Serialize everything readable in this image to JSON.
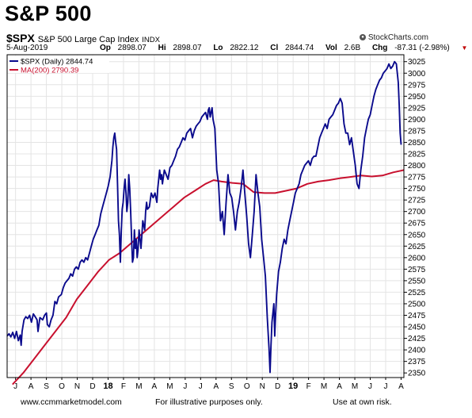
{
  "header": {
    "title": "S&P 500",
    "symbol": "$SPX",
    "description": "S&P 500 Large Cap Index",
    "exchange": "INDX",
    "brand": "StockCharts.com",
    "date": "5-Aug-2019",
    "quote": {
      "op_label": "Op",
      "op": "2898.07",
      "hi_label": "Hi",
      "hi": "2898.07",
      "lo_label": "Lo",
      "lo": "2822.12",
      "cl_label": "Cl",
      "cl": "2844.74",
      "vol_label": "Vol",
      "vol": "2.6B",
      "chg_label": "Chg",
      "chg": "-87.31 (-2.98%)"
    },
    "down_arrow": "▼"
  },
  "footer": {
    "left": "www.ccmmarketmodel.com",
    "center": "For illustrative purposes only.",
    "right": "Use at own risk."
  },
  "colors": {
    "price": "#0a0a8c",
    "ma": "#c8102e",
    "grid": "#e4e4e4",
    "axis": "#000000"
  },
  "chart_data": {
    "type": "line",
    "x_tick_labels": [
      "J",
      "A",
      "S",
      "O",
      "N",
      "D",
      "18",
      "F",
      "M",
      "A",
      "M",
      "J",
      "J",
      "A",
      "S",
      "O",
      "N",
      "D",
      "19",
      "F",
      "M",
      "A",
      "M",
      "J",
      "J",
      "A"
    ],
    "y_ticks": [
      2350,
      2375,
      2400,
      2425,
      2450,
      2475,
      2500,
      2525,
      2550,
      2575,
      2600,
      2625,
      2650,
      2675,
      2700,
      2725,
      2750,
      2775,
      2800,
      2825,
      2850,
      2875,
      2900,
      2925,
      2950,
      2975,
      3000,
      3025
    ],
    "ylim": [
      2340,
      3040
    ],
    "legend": [
      {
        "label": "$SPX (Daily) 2844.74",
        "color": "#0a0a8c"
      },
      {
        "label": "MA(200) 2790.39",
        "color": "#c8102e"
      }
    ],
    "series": [
      {
        "name": "$SPX (Daily)",
        "color": "#0a0a8c",
        "points": [
          [
            0,
            2430
          ],
          [
            0.2,
            2435
          ],
          [
            0.4,
            2428
          ],
          [
            0.6,
            2438
          ],
          [
            0.8,
            2425
          ],
          [
            1,
            2440
          ],
          [
            1.2,
            2420
          ],
          [
            1.4,
            2432
          ],
          [
            1.5,
            2410
          ],
          [
            1.6,
            2440
          ],
          [
            1.8,
            2465
          ],
          [
            2,
            2472
          ],
          [
            2.2,
            2468
          ],
          [
            2.4,
            2475
          ],
          [
            2.6,
            2460
          ],
          [
            2.8,
            2478
          ],
          [
            3,
            2472
          ],
          [
            3.2,
            2465
          ],
          [
            3.3,
            2440
          ],
          [
            3.5,
            2470
          ],
          [
            3.8,
            2465
          ],
          [
            4,
            2475
          ],
          [
            4.2,
            2480
          ],
          [
            4.3,
            2455
          ],
          [
            4.5,
            2450
          ],
          [
            4.7,
            2465
          ],
          [
            4.9,
            2475
          ],
          [
            5.1,
            2505
          ],
          [
            5.3,
            2500
          ],
          [
            5.5,
            2515
          ],
          [
            5.8,
            2520
          ],
          [
            6,
            2535
          ],
          [
            6.2,
            2545
          ],
          [
            6.4,
            2550
          ],
          [
            6.6,
            2555
          ],
          [
            6.8,
            2565
          ],
          [
            7,
            2560
          ],
          [
            7.2,
            2575
          ],
          [
            7.4,
            2580
          ],
          [
            7.6,
            2575
          ],
          [
            7.8,
            2590
          ],
          [
            8,
            2595
          ],
          [
            8.2,
            2590
          ],
          [
            8.4,
            2600
          ],
          [
            8.6,
            2595
          ],
          [
            8.8,
            2610
          ],
          [
            9,
            2625
          ],
          [
            9.2,
            2640
          ],
          [
            9.4,
            2650
          ],
          [
            9.6,
            2660
          ],
          [
            9.8,
            2670
          ],
          [
            10,
            2695
          ],
          [
            10.2,
            2710
          ],
          [
            10.4,
            2725
          ],
          [
            10.6,
            2740
          ],
          [
            10.8,
            2755
          ],
          [
            11,
            2775
          ],
          [
            11.2,
            2810
          ],
          [
            11.3,
            2840
          ],
          [
            11.4,
            2860
          ],
          [
            11.5,
            2870
          ],
          [
            11.6,
            2850
          ],
          [
            11.7,
            2835
          ],
          [
            11.8,
            2760
          ],
          [
            11.9,
            2680
          ],
          [
            12,
            2650
          ],
          [
            12.1,
            2590
          ],
          [
            12.2,
            2660
          ],
          [
            12.3,
            2705
          ],
          [
            12.4,
            2720
          ],
          [
            12.5,
            2750
          ],
          [
            12.6,
            2770
          ],
          [
            12.7,
            2740
          ],
          [
            12.8,
            2700
          ],
          [
            12.9,
            2720
          ],
          [
            13,
            2780
          ],
          [
            13.1,
            2750
          ],
          [
            13.2,
            2700
          ],
          [
            13.3,
            2640
          ],
          [
            13.4,
            2590
          ],
          [
            13.5,
            2600
          ],
          [
            13.6,
            2660
          ],
          [
            13.7,
            2620
          ],
          [
            13.8,
            2640
          ],
          [
            13.9,
            2600
          ],
          [
            14,
            2620
          ],
          [
            14.1,
            2660
          ],
          [
            14.2,
            2640
          ],
          [
            14.3,
            2620
          ],
          [
            14.4,
            2650
          ],
          [
            14.5,
            2680
          ],
          [
            14.6,
            2670
          ],
          [
            14.7,
            2660
          ],
          [
            14.8,
            2700
          ],
          [
            14.9,
            2720
          ],
          [
            15,
            2705
          ],
          [
            15.2,
            2710
          ],
          [
            15.4,
            2740
          ],
          [
            15.6,
            2730
          ],
          [
            15.8,
            2740
          ],
          [
            16,
            2720
          ],
          [
            16.1,
            2750
          ],
          [
            16.2,
            2770
          ],
          [
            16.3,
            2790
          ],
          [
            16.4,
            2770
          ],
          [
            16.5,
            2780
          ],
          [
            16.6,
            2760
          ],
          [
            16.8,
            2790
          ],
          [
            17,
            2780
          ],
          [
            17.2,
            2770
          ],
          [
            17.4,
            2795
          ],
          [
            17.6,
            2800
          ],
          [
            17.8,
            2810
          ],
          [
            18,
            2820
          ],
          [
            18.2,
            2835
          ],
          [
            18.4,
            2840
          ],
          [
            18.6,
            2850
          ],
          [
            18.8,
            2860
          ],
          [
            19,
            2855
          ],
          [
            19.2,
            2870
          ],
          [
            19.4,
            2875
          ],
          [
            19.6,
            2880
          ],
          [
            19.8,
            2860
          ],
          [
            20,
            2875
          ],
          [
            20.2,
            2885
          ],
          [
            20.4,
            2890
          ],
          [
            20.6,
            2895
          ],
          [
            20.8,
            2905
          ],
          [
            21,
            2910
          ],
          [
            21.2,
            2915
          ],
          [
            21.4,
            2900
          ],
          [
            21.5,
            2920
          ],
          [
            21.6,
            2925
          ],
          [
            21.7,
            2905
          ],
          [
            21.8,
            2915
          ],
          [
            21.9,
            2925
          ],
          [
            22,
            2900
          ],
          [
            22.2,
            2880
          ],
          [
            22.4,
            2790
          ],
          [
            22.6,
            2760
          ],
          [
            22.8,
            2680
          ],
          [
            23,
            2700
          ],
          [
            23.2,
            2650
          ],
          [
            23.4,
            2720
          ],
          [
            23.6,
            2780
          ],
          [
            23.8,
            2740
          ],
          [
            24,
            2730
          ],
          [
            24.2,
            2700
          ],
          [
            24.4,
            2660
          ],
          [
            24.6,
            2700
          ],
          [
            24.8,
            2720
          ],
          [
            25,
            2750
          ],
          [
            25.2,
            2790
          ],
          [
            25.4,
            2740
          ],
          [
            25.6,
            2690
          ],
          [
            25.8,
            2630
          ],
          [
            26,
            2600
          ],
          [
            26.2,
            2650
          ],
          [
            26.4,
            2700
          ],
          [
            26.6,
            2780
          ],
          [
            26.8,
            2740
          ],
          [
            27,
            2710
          ],
          [
            27.2,
            2640
          ],
          [
            27.4,
            2600
          ],
          [
            27.6,
            2560
          ],
          [
            27.8,
            2470
          ],
          [
            28,
            2400
          ],
          [
            28.1,
            2351
          ],
          [
            28.2,
            2410
          ],
          [
            28.3,
            2460
          ],
          [
            28.4,
            2480
          ],
          [
            28.5,
            2500
          ],
          [
            28.6,
            2430
          ],
          [
            28.7,
            2480
          ],
          [
            28.8,
            2520
          ],
          [
            29,
            2570
          ],
          [
            29.2,
            2590
          ],
          [
            29.4,
            2620
          ],
          [
            29.6,
            2640
          ],
          [
            29.8,
            2630
          ],
          [
            30,
            2660
          ],
          [
            30.2,
            2680
          ],
          [
            30.4,
            2700
          ],
          [
            30.6,
            2720
          ],
          [
            30.8,
            2740
          ],
          [
            31,
            2750
          ],
          [
            31.2,
            2760
          ],
          [
            31.4,
            2780
          ],
          [
            31.6,
            2790
          ],
          [
            31.8,
            2800
          ],
          [
            32,
            2805
          ],
          [
            32.2,
            2810
          ],
          [
            32.4,
            2800
          ],
          [
            32.6,
            2815
          ],
          [
            32.8,
            2820
          ],
          [
            33,
            2820
          ],
          [
            33.2,
            2840
          ],
          [
            33.4,
            2860
          ],
          [
            33.6,
            2870
          ],
          [
            33.8,
            2880
          ],
          [
            34,
            2890
          ],
          [
            34.2,
            2880
          ],
          [
            34.4,
            2900
          ],
          [
            34.6,
            2905
          ],
          [
            34.8,
            2910
          ],
          [
            35,
            2920
          ],
          [
            35.2,
            2930
          ],
          [
            35.4,
            2935
          ],
          [
            35.6,
            2945
          ],
          [
            35.8,
            2935
          ],
          [
            36,
            2890
          ],
          [
            36.2,
            2870
          ],
          [
            36.4,
            2870
          ],
          [
            36.6,
            2845
          ],
          [
            36.8,
            2860
          ],
          [
            37,
            2830
          ],
          [
            37.2,
            2800
          ],
          [
            37.4,
            2760
          ],
          [
            37.6,
            2750
          ],
          [
            37.8,
            2790
          ],
          [
            38,
            2820
          ],
          [
            38.2,
            2860
          ],
          [
            38.4,
            2880
          ],
          [
            38.6,
            2900
          ],
          [
            38.8,
            2910
          ],
          [
            39,
            2930
          ],
          [
            39.2,
            2950
          ],
          [
            39.4,
            2965
          ],
          [
            39.6,
            2975
          ],
          [
            39.8,
            2985
          ],
          [
            40,
            2990
          ],
          [
            40.2,
            3000
          ],
          [
            40.4,
            3005
          ],
          [
            40.6,
            3010
          ],
          [
            40.8,
            3020
          ],
          [
            41,
            3010
          ],
          [
            41.2,
            3015
          ],
          [
            41.4,
            3025
          ],
          [
            41.6,
            3020
          ],
          [
            41.7,
            3000
          ],
          [
            41.8,
            2980
          ],
          [
            41.9,
            2930
          ],
          [
            42,
            2870
          ],
          [
            42.1,
            2845
          ]
        ]
      },
      {
        "name": "MA(200)",
        "color": "#c8102e",
        "points": [
          [
            1,
            2325
          ],
          [
            3,
            2350
          ],
          [
            5,
            2380
          ],
          [
            7,
            2410
          ],
          [
            9,
            2440
          ],
          [
            11,
            2470
          ],
          [
            13,
            2510
          ],
          [
            15,
            2540
          ],
          [
            17,
            2570
          ],
          [
            19,
            2595
          ],
          [
            21,
            2610
          ],
          [
            23,
            2630
          ],
          [
            25,
            2650
          ],
          [
            27,
            2670
          ],
          [
            29,
            2690
          ],
          [
            31,
            2710
          ],
          [
            33,
            2730
          ],
          [
            35,
            2745
          ],
          [
            37,
            2760
          ],
          [
            38.5,
            2768
          ],
          [
            40,
            2765
          ],
          [
            42,
            2762
          ],
          [
            44,
            2760
          ],
          [
            46,
            2742
          ],
          [
            48,
            2740
          ],
          [
            50,
            2740
          ],
          [
            52,
            2745
          ],
          [
            54,
            2750
          ],
          [
            56,
            2760
          ],
          [
            58,
            2765
          ],
          [
            60,
            2768
          ],
          [
            62,
            2772
          ],
          [
            64,
            2775
          ],
          [
            66,
            2778
          ],
          [
            68,
            2776
          ],
          [
            70,
            2778
          ],
          [
            72,
            2785
          ],
          [
            74,
            2790
          ]
        ]
      }
    ]
  }
}
